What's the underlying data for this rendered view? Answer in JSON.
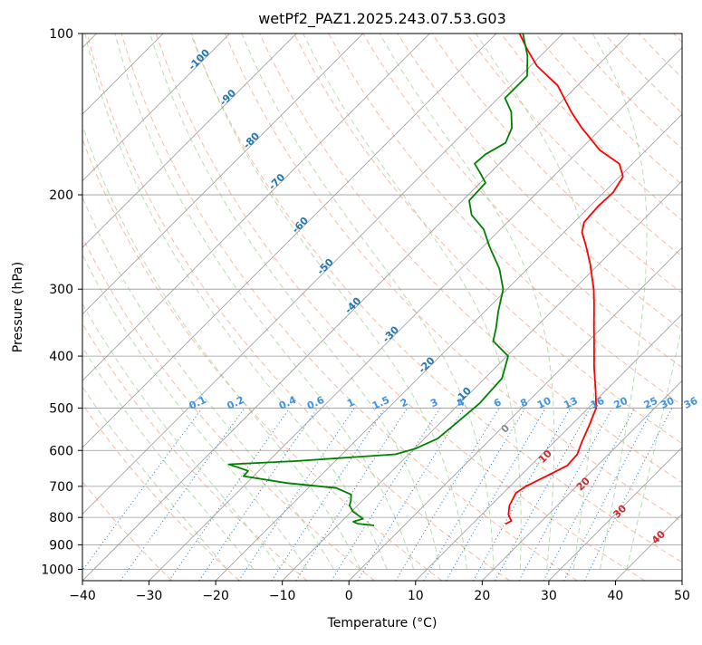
{
  "chart_data": {
    "type": "line",
    "title": "wetPf2_PAZ1.2025.243.07.53.G03",
    "xlabel": "Temperature (°C)",
    "ylabel": "Pressure (hPa)",
    "x_scale": "skew-T (45° skewed temperature)",
    "y_scale": "log",
    "xlim": [
      -40,
      50
    ],
    "ylim": [
      1050,
      100
    ],
    "x_ticks": [
      -40,
      -30,
      -20,
      -10,
      0,
      10,
      20,
      30,
      40,
      50
    ],
    "y_ticks": [
      100,
      200,
      300,
      400,
      500,
      600,
      700,
      800,
      900,
      1000
    ],
    "grid": true,
    "background_lines": {
      "isotherm_color": "#999999",
      "dry_adiabat_color": "#f4a582",
      "moist_adiabat_color": "#a6d49a",
      "mixing_ratio_color": "#1f77b4",
      "frost_point_label_color": "#1f77b4",
      "moist_label_color": "#d62728"
    },
    "series": [
      {
        "color": "#ff0000",
        "points": [
          {
            "p": 823,
            "t": 15.0
          },
          {
            "p": 812,
            "t": 15.4
          },
          {
            "p": 790,
            "t": 14.0
          },
          {
            "p": 760,
            "t": 12.8
          },
          {
            "p": 720,
            "t": 11.9
          },
          {
            "p": 700,
            "t": 12.4
          },
          {
            "p": 665,
            "t": 14.2
          },
          {
            "p": 640,
            "t": 15.5
          },
          {
            "p": 610,
            "t": 15.3
          },
          {
            "p": 580,
            "t": 14.2
          },
          {
            "p": 540,
            "t": 12.8
          },
          {
            "p": 500,
            "t": 11.2
          },
          {
            "p": 460,
            "t": 8.2
          },
          {
            "p": 420,
            "t": 4.8
          },
          {
            "p": 380,
            "t": 1.3
          },
          {
            "p": 350,
            "t": -1.6
          },
          {
            "p": 320,
            "t": -4.7
          },
          {
            "p": 300,
            "t": -7.0
          },
          {
            "p": 270,
            "t": -11.2
          },
          {
            "p": 250,
            "t": -14.5
          },
          {
            "p": 235,
            "t": -17.3
          },
          {
            "p": 225,
            "t": -18.5
          },
          {
            "p": 210,
            "t": -18.8
          },
          {
            "p": 198,
            "t": -18.6
          },
          {
            "p": 185,
            "t": -19.5
          },
          {
            "p": 175,
            "t": -22.0
          },
          {
            "p": 165,
            "t": -27.0
          },
          {
            "p": 150,
            "t": -33.0
          },
          {
            "p": 140,
            "t": -37.0
          },
          {
            "p": 125,
            "t": -43.0
          },
          {
            "p": 115,
            "t": -49.0
          },
          {
            "p": 107,
            "t": -53.0
          },
          {
            "p": 100,
            "t": -56.5
          }
        ]
      },
      {
        "color": "#008000",
        "points": [
          {
            "p": 828,
            "t": -4.5
          },
          {
            "p": 822,
            "t": -7.2
          },
          {
            "p": 815,
            "t": -8.2
          },
          {
            "p": 805,
            "t": -7.2
          },
          {
            "p": 790,
            "t": -8.7
          },
          {
            "p": 780,
            "t": -9.8
          },
          {
            "p": 760,
            "t": -11.2
          },
          {
            "p": 745,
            "t": -11.7
          },
          {
            "p": 725,
            "t": -12.6
          },
          {
            "p": 705,
            "t": -15.8
          },
          {
            "p": 690,
            "t": -24.0
          },
          {
            "p": 670,
            "t": -31.5
          },
          {
            "p": 655,
            "t": -31.6
          },
          {
            "p": 645,
            "t": -33.7
          },
          {
            "p": 637,
            "t": -35.5
          },
          {
            "p": 628,
            "t": -26.0
          },
          {
            "p": 610,
            "t": -12.0
          },
          {
            "p": 595,
            "t": -9.8
          },
          {
            "p": 570,
            "t": -8.0
          },
          {
            "p": 530,
            "t": -7.5
          },
          {
            "p": 490,
            "t": -7.0
          },
          {
            "p": 440,
            "t": -7.4
          },
          {
            "p": 400,
            "t": -9.8
          },
          {
            "p": 375,
            "t": -14.3
          },
          {
            "p": 355,
            "t": -15.8
          },
          {
            "p": 330,
            "t": -18.0
          },
          {
            "p": 300,
            "t": -20.6
          },
          {
            "p": 275,
            "t": -24.2
          },
          {
            "p": 250,
            "t": -29.0
          },
          {
            "p": 232,
            "t": -32.5
          },
          {
            "p": 218,
            "t": -36.5
          },
          {
            "p": 205,
            "t": -39.0
          },
          {
            "p": 190,
            "t": -39.2
          },
          {
            "p": 182,
            "t": -41.5
          },
          {
            "p": 175,
            "t": -43.7
          },
          {
            "p": 168,
            "t": -43.5
          },
          {
            "p": 160,
            "t": -42.2
          },
          {
            "p": 150,
            "t": -43.5
          },
          {
            "p": 140,
            "t": -46.0
          },
          {
            "p": 132,
            "t": -49.0
          },
          {
            "p": 120,
            "t": -49.0
          },
          {
            "p": 110,
            "t": -52.0
          },
          {
            "p": 100,
            "t": -56.0
          }
        ]
      }
    ],
    "frost_point_labels": [
      {
        "label": "-100",
        "t": -100,
        "p": 113
      },
      {
        "label": "-90",
        "t": -90,
        "p": 133
      },
      {
        "label": "-80",
        "t": -80,
        "p": 160
      },
      {
        "label": "-70",
        "t": -70,
        "p": 191
      },
      {
        "label": "-60",
        "t": -60,
        "p": 230
      },
      {
        "label": "-50",
        "t": -50,
        "p": 275
      },
      {
        "label": "-40",
        "t": -40,
        "p": 325
      },
      {
        "label": "-30",
        "t": -30,
        "p": 368
      },
      {
        "label": "-20",
        "t": -20,
        "p": 420
      },
      {
        "label": "-10",
        "t": -10,
        "p": 478
      }
    ],
    "mixing_ratio_labels": [
      "0.1",
      "0.2",
      "0.4",
      "0.6",
      "1",
      "1.5",
      "2",
      "3",
      "4",
      "6",
      "8",
      "10",
      "13",
      "16",
      "20",
      "25",
      "30",
      "36"
    ],
    "mixing_ratio_label_positions": [
      -22.5,
      -16.8,
      -9.0,
      -4.8,
      0.5,
      5.0,
      8.5,
      13.0,
      17.0,
      22.5,
      26.5,
      29.5,
      33.5,
      37.5,
      41.0,
      45.5,
      48.0,
      51.5
    ],
    "moist_adiabat_labels": [
      {
        "label": "0",
        "t": 23.8,
        "p": 552,
        "color": "#888888"
      },
      {
        "label": "10",
        "t": 29.8,
        "p": 622,
        "color": "#d62728"
      },
      {
        "label": "20",
        "t": 35.5,
        "p": 700,
        "color": "#d62728"
      },
      {
        "label": "30",
        "t": 41.0,
        "p": 788,
        "color": "#d62728"
      },
      {
        "label": "40",
        "t": 46.8,
        "p": 880,
        "color": "#d62728"
      }
    ]
  }
}
